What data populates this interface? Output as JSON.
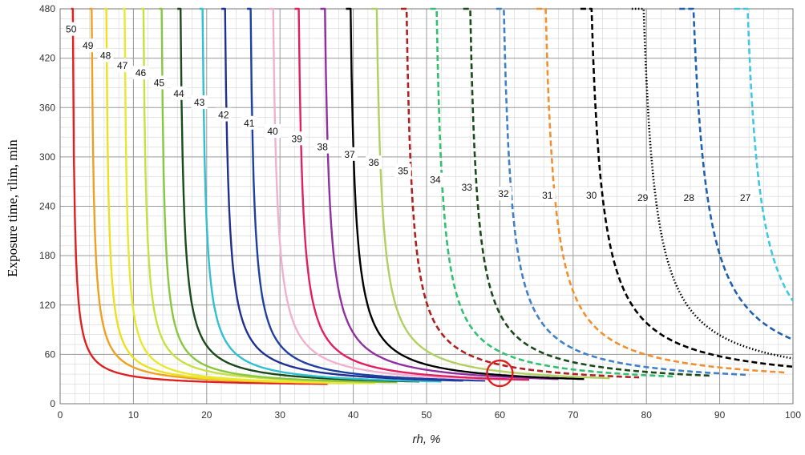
{
  "chart_data": {
    "type": "line",
    "title": "",
    "xlabel": "rh, %",
    "ylabel": "Exposure time, τlim, min",
    "xlim": [
      0,
      100
    ],
    "ylim": [
      0,
      480
    ],
    "x_ticks": [
      "0",
      "10",
      "20",
      "30",
      "40",
      "50",
      "60",
      "70",
      "80",
      "90",
      "100"
    ],
    "y_ticks": [
      "0",
      "60",
      "120",
      "180",
      "240",
      "300",
      "360",
      "420",
      "480"
    ],
    "grid": "on",
    "legend": "none",
    "series": [
      {
        "name": "50",
        "asymptote_rh": 1.5,
        "end_rh": 36.5,
        "end_t": 24,
        "color": "#e02020",
        "dash": "solid"
      },
      {
        "name": "49",
        "asymptote_rh": 4,
        "end_rh": 39,
        "end_t": 25,
        "color": "#f0a020",
        "dash": "solid"
      },
      {
        "name": "48",
        "asymptote_rh": 6,
        "end_rh": 41,
        "end_t": 25,
        "color": "#ede020",
        "dash": "solid"
      },
      {
        "name": "47",
        "asymptote_rh": 8.5,
        "end_rh": 43,
        "end_t": 25,
        "color": "#e8e830",
        "dash": "solid"
      },
      {
        "name": "46",
        "asymptote_rh": 11,
        "end_rh": 45,
        "end_t": 26,
        "color": "#c8e040",
        "dash": "solid"
      },
      {
        "name": "45",
        "asymptote_rh": 13.5,
        "end_rh": 46,
        "end_t": 26,
        "color": "#88c840",
        "dash": "solid"
      },
      {
        "name": "44",
        "asymptote_rh": 16,
        "end_rh": 49,
        "end_t": 27,
        "color": "#1a4a1a",
        "dash": "solid"
      },
      {
        "name": "43",
        "asymptote_rh": 19,
        "end_rh": 52,
        "end_t": 27,
        "color": "#30c0d0",
        "dash": "solid"
      },
      {
        "name": "42",
        "asymptote_rh": 22,
        "end_rh": 55,
        "end_t": 28,
        "color": "#203090",
        "dash": "solid"
      },
      {
        "name": "41",
        "asymptote_rh": 25.5,
        "end_rh": 58,
        "end_t": 28,
        "color": "#2040a0",
        "dash": "solid"
      },
      {
        "name": "40",
        "asymptote_rh": 28.5,
        "end_rh": 61,
        "end_t": 29,
        "color": "#f0b0d0",
        "dash": "solid"
      },
      {
        "name": "39",
        "asymptote_rh": 32,
        "end_rh": 64,
        "end_t": 29,
        "color": "#e02060",
        "dash": "solid"
      },
      {
        "name": "38",
        "asymptote_rh": 35.5,
        "end_rh": 68,
        "end_t": 30,
        "color": "#9030a0",
        "dash": "solid"
      },
      {
        "name": "37",
        "asymptote_rh": 39,
        "end_rh": 71.5,
        "end_t": 30,
        "color": "#000000",
        "dash": "solid"
      },
      {
        "name": "36",
        "asymptote_rh": 42.5,
        "end_rh": 75,
        "end_t": 31,
        "color": "#b0d060",
        "dash": "solid"
      },
      {
        "name": "35",
        "asymptote_rh": 46.5,
        "end_rh": 79,
        "end_t": 32,
        "color": "#b02020",
        "dash": "dashed"
      },
      {
        "name": "34",
        "asymptote_rh": 50.5,
        "end_rh": 84,
        "end_t": 33,
        "color": "#30c070",
        "dash": "dashed"
      },
      {
        "name": "33",
        "asymptote_rh": 55,
        "end_rh": 89,
        "end_t": 34,
        "color": "#1a4a1a",
        "dash": "dashed"
      },
      {
        "name": "32",
        "asymptote_rh": 59.5,
        "end_rh": 94,
        "end_t": 35,
        "color": "#4080c8",
        "dash": "dashed"
      },
      {
        "name": "31",
        "asymptote_rh": 65,
        "end_rh": 99,
        "end_t": 38,
        "color": "#f09030",
        "dash": "dashed"
      },
      {
        "name": "30",
        "asymptote_rh": 71,
        "end_rh": 100,
        "end_t": 45,
        "color": "#000000",
        "dash": "dashed"
      },
      {
        "name": "29",
        "asymptote_rh": 78,
        "end_rh": 100,
        "end_t": 55,
        "color": "#000000",
        "dash": "dotted"
      },
      {
        "name": "28",
        "asymptote_rh": 84.5,
        "end_rh": 100,
        "end_t": 78,
        "color": "#2060b0",
        "dash": "dashed"
      },
      {
        "name": "27",
        "asymptote_rh": 92,
        "end_rh": 100,
        "end_t": 125,
        "color": "#40c8e0",
        "dash": "dashed"
      }
    ],
    "curve_label_positions": [
      {
        "name": "50",
        "rh": 1.5,
        "t": 455
      },
      {
        "name": "49",
        "rh": 3.8,
        "t": 435
      },
      {
        "name": "48",
        "rh": 6.2,
        "t": 423
      },
      {
        "name": "47",
        "rh": 8.5,
        "t": 411
      },
      {
        "name": "46",
        "rh": 11,
        "t": 402
      },
      {
        "name": "45",
        "rh": 13.5,
        "t": 390
      },
      {
        "name": "44",
        "rh": 16.2,
        "t": 377
      },
      {
        "name": "43",
        "rh": 19,
        "t": 366
      },
      {
        "name": "42",
        "rh": 22.3,
        "t": 351
      },
      {
        "name": "41",
        "rh": 25.8,
        "t": 341
      },
      {
        "name": "40",
        "rh": 29,
        "t": 331
      },
      {
        "name": "39",
        "rh": 32.3,
        "t": 322
      },
      {
        "name": "38",
        "rh": 35.8,
        "t": 312
      },
      {
        "name": "37",
        "rh": 39.5,
        "t": 303
      },
      {
        "name": "36",
        "rh": 42.8,
        "t": 293
      },
      {
        "name": "35",
        "rh": 46.8,
        "t": 283
      },
      {
        "name": "34",
        "rh": 51.2,
        "t": 272
      },
      {
        "name": "33",
        "rh": 55.5,
        "t": 263
      },
      {
        "name": "32",
        "rh": 60.5,
        "t": 255
      },
      {
        "name": "31",
        "rh": 66.5,
        "t": 253
      },
      {
        "name": "30",
        "rh": 72.5,
        "t": 253
      },
      {
        "name": "29",
        "rh": 79.5,
        "t": 250
      },
      {
        "name": "28",
        "rh": 85.8,
        "t": 250
      },
      {
        "name": "27",
        "rh": 93.5,
        "t": 250
      }
    ],
    "annotations": [
      {
        "type": "circle",
        "rh": 60,
        "t": 37,
        "color": "#e02020"
      }
    ]
  }
}
